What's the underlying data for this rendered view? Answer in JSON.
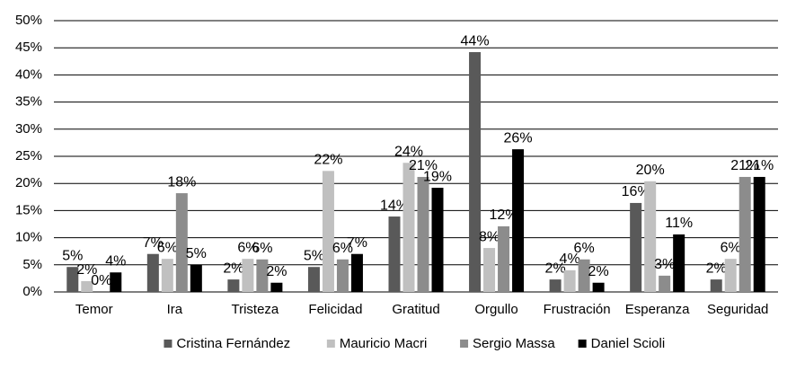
{
  "chart_data": {
    "type": "bar",
    "categories": [
      "Temor",
      "Ira",
      "Tristeza",
      "Felicidad",
      "Gratitud",
      "Orgullo",
      "Frustración",
      "Esperanza",
      "Seguridad"
    ],
    "series": [
      {
        "name": "Cristina Fernández",
        "color": "#595959",
        "values": [
          4.6,
          7.0,
          2.3,
          4.6,
          13.9,
          44.2,
          2.3,
          16.4,
          2.3
        ],
        "value_labels": [
          "5%",
          "7%",
          "2%",
          "5%",
          "14%",
          "44%",
          "2%",
          "16%",
          "2%"
        ]
      },
      {
        "name": "Mauricio Macri",
        "color": "#c0c0c0",
        "values": [
          2.0,
          6.1,
          6.1,
          22.3,
          23.8,
          8.1,
          4.0,
          20.4,
          6.1
        ],
        "value_labels": [
          "2%",
          "6%",
          "6%",
          "22%",
          "24%",
          "8%",
          "4%",
          "20%",
          "6%"
        ]
      },
      {
        "name": "Sergio Massa",
        "color": "#8c8c8c",
        "values": [
          0,
          18.2,
          6.0,
          6.0,
          21.2,
          12.1,
          6.0,
          3.0,
          21.2
        ],
        "value_labels": [
          "0%",
          "18%",
          "6%",
          "6%",
          "21%",
          "12%",
          "6%",
          "3%",
          "21%"
        ]
      },
      {
        "name": "Daniel Scioli",
        "color": "#000000",
        "values": [
          3.6,
          5.0,
          1.7,
          7.0,
          19.2,
          26.3,
          1.7,
          10.6,
          21.2
        ],
        "value_labels": [
          "4%",
          "5%",
          "2%",
          "7%",
          "19%",
          "26%",
          "2%",
          "11%",
          "21%"
        ]
      }
    ],
    "ylim": [
      0,
      50
    ],
    "yticks": [
      {
        "value": 0,
        "label": "0%"
      },
      {
        "value": 5,
        "label": "5%"
      },
      {
        "value": 10,
        "label": "10%"
      },
      {
        "value": 15,
        "label": "15%"
      },
      {
        "value": 20,
        "label": "20%"
      },
      {
        "value": 25,
        "label": "25%"
      },
      {
        "value": 30,
        "label": "30%"
      },
      {
        "value": 35,
        "label": "35%"
      },
      {
        "value": 40,
        "label": "40%"
      },
      {
        "value": 45,
        "label": "45%"
      },
      {
        "value": 50,
        "label": "50%"
      }
    ],
    "grid": true,
    "legend": "bottom"
  }
}
